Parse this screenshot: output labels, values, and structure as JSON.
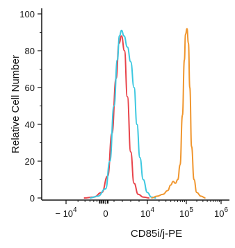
{
  "chart_data": {
    "type": "line",
    "title": "",
    "xlabel": "CD85i/j-PE",
    "ylabel": "Relative Cell Number",
    "x_scale": "biexponential",
    "ylim": [
      0,
      100
    ],
    "grid": false,
    "x_ticks": [
      {
        "label_base": "− 10",
        "exp": "4"
      },
      {
        "label_base": "0",
        "exp": ""
      },
      {
        "label_base": "10",
        "exp": "4"
      },
      {
        "label_base": "10",
        "exp": "5"
      },
      {
        "label_base": "10",
        "exp": "6"
      }
    ],
    "y_ticks": [
      {
        "value": 0,
        "label": "0"
      },
      {
        "value": 20,
        "label": "20"
      },
      {
        "value": 40,
        "label": "40"
      },
      {
        "value": 60,
        "label": "60"
      },
      {
        "value": 80,
        "label": "80"
      },
      {
        "value": 100,
        "label": "100"
      }
    ],
    "series": [
      {
        "color": "#e8434a",
        "points": [
          [
            -0.55,
            0
          ],
          [
            -0.3,
            0.5
          ],
          [
            -0.1,
            3
          ],
          [
            0.05,
            12
          ],
          [
            0.15,
            35
          ],
          [
            0.25,
            65
          ],
          [
            0.32,
            84
          ],
          [
            0.38,
            88
          ],
          [
            0.45,
            80
          ],
          [
            0.52,
            55
          ],
          [
            0.6,
            25
          ],
          [
            0.68,
            8
          ],
          [
            0.78,
            2
          ],
          [
            0.9,
            0.5
          ],
          [
            1.05,
            0
          ]
        ]
      },
      {
        "color": "#3cc8e0",
        "points": [
          [
            -0.4,
            0
          ],
          [
            -0.2,
            1
          ],
          [
            0,
            5
          ],
          [
            0.1,
            20
          ],
          [
            0.2,
            50
          ],
          [
            0.28,
            75
          ],
          [
            0.33,
            88
          ],
          [
            0.38,
            91
          ],
          [
            0.44,
            88
          ],
          [
            0.52,
            82
          ],
          [
            0.6,
            74
          ],
          [
            0.68,
            60
          ],
          [
            0.75,
            40
          ],
          [
            0.82,
            22
          ],
          [
            0.9,
            10
          ],
          [
            1.0,
            3
          ],
          [
            1.1,
            0.5
          ],
          [
            1.22,
            0
          ]
        ]
      },
      {
        "color": "#f0962e",
        "points": [
          [
            1.1,
            0
          ],
          [
            1.25,
            1
          ],
          [
            1.4,
            2
          ],
          [
            1.52,
            4
          ],
          [
            1.6,
            7
          ],
          [
            1.66,
            9
          ],
          [
            1.72,
            8
          ],
          [
            1.78,
            10
          ],
          [
            1.84,
            18
          ],
          [
            1.9,
            45
          ],
          [
            1.95,
            75
          ],
          [
            1.98,
            89
          ],
          [
            2.02,
            92
          ],
          [
            2.06,
            84
          ],
          [
            2.1,
            60
          ],
          [
            2.15,
            28
          ],
          [
            2.22,
            10
          ],
          [
            2.3,
            3
          ],
          [
            2.42,
            1
          ],
          [
            2.55,
            0
          ]
        ]
      }
    ]
  }
}
